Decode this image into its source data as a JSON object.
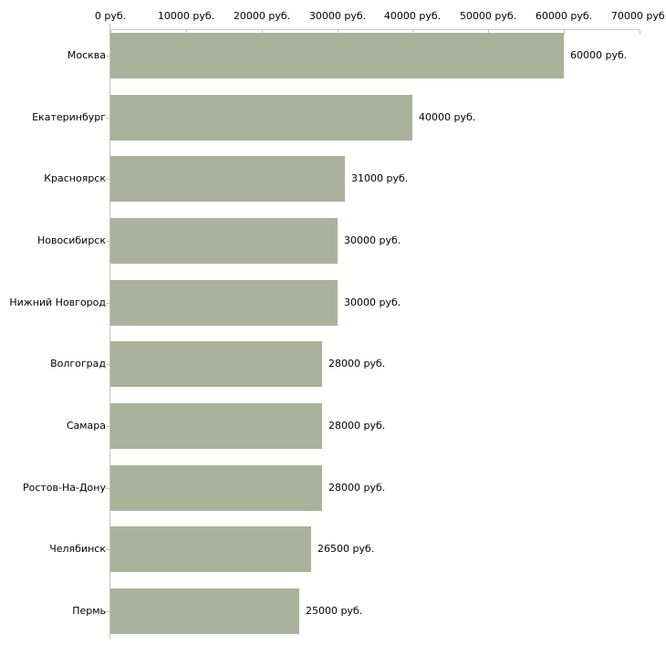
{
  "chart_data": {
    "type": "bar",
    "orientation": "horizontal",
    "title": "",
    "xlabel": "",
    "ylabel": "",
    "categories": [
      "Москва",
      "Екатеринбург",
      "Красноярск",
      "Новосибирск",
      "Нижний Новгород",
      "Волгоград",
      "Самара",
      "Ростов-На-Дону",
      "Челябинск",
      "Пермь"
    ],
    "values": [
      60000,
      40000,
      31000,
      30000,
      30000,
      28000,
      28000,
      28000,
      26500,
      25000
    ],
    "value_labels": [
      "60000 руб.",
      "40000 руб.",
      "31000 руб.",
      "30000 руб.",
      "30000 руб.",
      "28000 руб.",
      "28000 руб.",
      "28000 руб.",
      "26500 руб.",
      "25000 руб."
    ],
    "x_axis": {
      "min": 0,
      "max": 70000,
      "tick_step": 10000,
      "tick_labels": [
        "0 руб.",
        "10000 руб.",
        "20000 руб.",
        "30000 руб.",
        "40000 руб.",
        "50000 руб.",
        "60000 руб.",
        "70000 руб."
      ]
    },
    "grid": false,
    "legend": false,
    "colors": {
      "bar": "#abb19b",
      "tick": "#cbc8a2",
      "x_axis_line": "#c9c9c4",
      "y_axis_line": "#c2c2c2",
      "text": "#000000",
      "background": "#ffffff"
    }
  }
}
